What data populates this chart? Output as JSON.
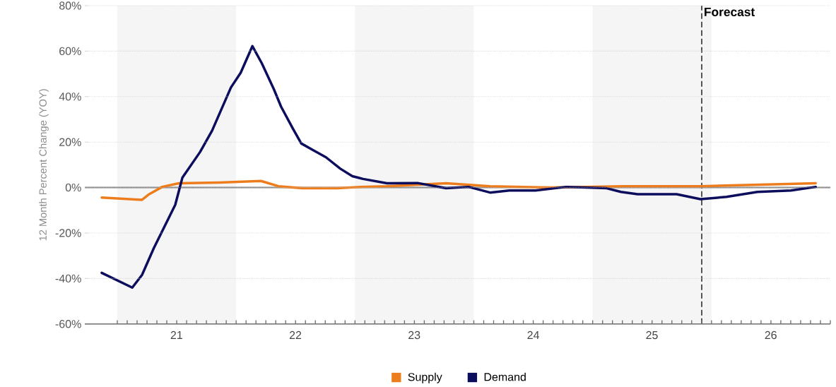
{
  "chart_data": {
    "type": "line",
    "ylabel": "12 Month Percent Change (YOY)",
    "x": [
      "2020-11-14",
      "2021-02-16",
      "2021-03-18",
      "2021-04-23",
      "2021-06-28",
      "2021-07-20",
      "2021-09-12",
      "2021-10-19",
      "2021-12-16",
      "2022-01-15",
      "2022-02-20",
      "2022-03-21",
      "2022-04-27",
      "2022-05-19",
      "2022-06-24",
      "2022-07-20",
      "2022-08-25",
      "2022-10-04",
      "2022-11-17",
      "2022-12-24",
      "2023-01-26",
      "2023-04-09",
      "2023-07-12",
      "2023-10-08",
      "2023-12-16",
      "2024-02-20",
      "2024-04-19",
      "2024-07-09",
      "2024-10-12",
      "2025-02-13",
      "2025-03-29",
      "2025-05-19",
      "2025-09-16",
      "2025-11-28",
      "2026-02-16",
      "2026-05-22",
      "2026-09-02",
      "2026-11-17"
    ],
    "series": [
      {
        "name": "Supply",
        "color": "#ed7d1c",
        "x": [
          "2020-11-14",
          "2021-03-18",
          "2021-04-09",
          "2021-05-19",
          "2021-07-09",
          "2021-11-10",
          "2022-03-18",
          "2022-05-11",
          "2022-07-23",
          "2022-11-10",
          "2023-01-18",
          "2023-04-09",
          "2023-10-08",
          "2024-02-20",
          "2024-08-29",
          "2025-04-05",
          "2025-11-28",
          "2026-11-17"
        ],
        "values": [
          -4.4,
          -5.4,
          -2.9,
          0.3,
          1.9,
          2.2,
          2.9,
          0.6,
          -0.3,
          -0.3,
          0.3,
          0.6,
          1.9,
          0.6,
          0,
          0.6,
          0.6,
          1.9
        ]
      },
      {
        "name": "Demand",
        "color": "#0d0d5e",
        "values": [
          -37.5,
          -44,
          -38.4,
          -26.7,
          -7.6,
          4.4,
          15.6,
          25,
          44,
          50.5,
          62.2,
          54.6,
          43.2,
          35.6,
          26,
          19.4,
          16.5,
          13.3,
          8.3,
          5,
          3.8,
          1.9,
          2,
          -0.3,
          0.3,
          -2.2,
          -1.3,
          -1.3,
          0.3,
          -0.3,
          -1.9,
          -2.9,
          -2.9,
          -5.1,
          -4.1,
          -1.9,
          -1.3,
          0.3
        ]
      }
    ],
    "xlim": [
      "2020-09-23",
      "2027-01-01"
    ],
    "xticks": [
      {
        "value": "2021-01-01",
        "label": null
      },
      {
        "value": "2022-01-01",
        "label": null
      },
      {
        "value": "2023-01-01",
        "label": null
      },
      {
        "value": "2024-01-01",
        "label": null
      },
      {
        "value": "2025-01-01",
        "label": null
      },
      {
        "value": "2026-01-01",
        "label": null
      },
      {
        "value": "2027-01-01",
        "label": null
      },
      {
        "value": "2021-07-02",
        "label": "21"
      },
      {
        "value": "2022-07-02",
        "label": "22"
      },
      {
        "value": "2023-07-02",
        "label": "23"
      },
      {
        "value": "2024-07-02",
        "label": "24"
      },
      {
        "value": "2025-07-02",
        "label": "25"
      },
      {
        "value": "2026-07-02",
        "label": "26"
      }
    ],
    "ylim": [
      -60,
      80
    ],
    "yticks": [
      {
        "value": -60,
        "label": "-60%"
      },
      {
        "value": -40,
        "label": "-40%"
      },
      {
        "value": -20,
        "label": "-20%"
      },
      {
        "value": 0,
        "label": "0%"
      },
      {
        "value": 20,
        "label": "20%"
      },
      {
        "value": 40,
        "label": "40%"
      },
      {
        "value": 60,
        "label": "60%"
      },
      {
        "value": 80,
        "label": "80%"
      }
    ],
    "grid": "y",
    "legend": "bottom",
    "line_style": "solid",
    "marker": "none",
    "bands": [
      {
        "axis": "x",
        "from": "2021-01-01",
        "to": "2022-01-01",
        "color": "#f5f5f5"
      },
      {
        "axis": "x",
        "from": "2023-01-01",
        "to": "2024-01-01",
        "color": "#f5f5f5"
      },
      {
        "axis": "x",
        "from": "2025-01-01",
        "to": "2026-01-01",
        "color": "#f5f5f5"
      }
    ],
    "ref_lines": [
      {
        "axis": "y",
        "value": 0,
        "color": "#808080",
        "line_style": "solid"
      },
      {
        "axis": "x",
        "value": "2025-12-02",
        "label": "Forecast",
        "color": "#555555",
        "line_style": "dashed"
      }
    ]
  }
}
